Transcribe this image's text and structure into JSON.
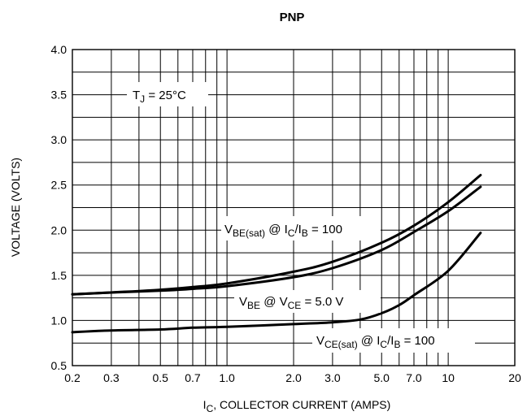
{
  "chart_data": {
    "type": "line",
    "title": "PNP",
    "xlabel": {
      "main": "I",
      "sub": "C",
      "rest": ", COLLECTOR CURRENT (AMPS)"
    },
    "ylabel": "VOLTAGE (VOLTS)",
    "x_scale": "log",
    "xlim": [
      0.2,
      20
    ],
    "ylim": [
      0.5,
      4.0
    ],
    "grid": true,
    "x_ticks": [
      {
        "v": 0.2,
        "label": "0.2"
      },
      {
        "v": 0.3,
        "label": "0.3"
      },
      {
        "v": 0.5,
        "label": "0.5"
      },
      {
        "v": 0.7,
        "label": "0.7"
      },
      {
        "v": 1,
        "label": "1.0"
      },
      {
        "v": 2,
        "label": "2.0"
      },
      {
        "v": 3,
        "label": "3.0"
      },
      {
        "v": 5,
        "label": "5.0"
      },
      {
        "v": 7,
        "label": "7.0"
      },
      {
        "v": 10,
        "label": "10"
      },
      {
        "v": 20,
        "label": "20"
      }
    ],
    "y_ticks": [
      {
        "v": 0.5,
        "label": "0.5"
      },
      {
        "v": 1.0,
        "label": "1.0"
      },
      {
        "v": 1.5,
        "label": "1.5"
      },
      {
        "v": 2.0,
        "label": "2.0"
      },
      {
        "v": 2.5,
        "label": "2.5"
      },
      {
        "v": 3.0,
        "label": "3.0"
      },
      {
        "v": 3.5,
        "label": "3.5"
      },
      {
        "v": 4.0,
        "label": "4.0"
      }
    ],
    "series": [
      {
        "id": "vbe-sat",
        "x": [
          0.2,
          0.3,
          0.5,
          0.7,
          1.0,
          2.0,
          3.0,
          5.0,
          7.0,
          10,
          14
        ],
        "y": [
          1.29,
          1.31,
          1.34,
          1.37,
          1.41,
          1.54,
          1.65,
          1.86,
          2.05,
          2.31,
          2.61
        ]
      },
      {
        "id": "vbe",
        "x": [
          0.2,
          0.3,
          0.5,
          0.7,
          1.0,
          2.0,
          3.0,
          5.0,
          7.0,
          10,
          14
        ],
        "y": [
          1.29,
          1.31,
          1.33,
          1.35,
          1.38,
          1.48,
          1.58,
          1.78,
          1.98,
          2.21,
          2.48
        ]
      },
      {
        "id": "vce-sat",
        "x": [
          0.2,
          0.3,
          0.5,
          0.7,
          1.0,
          2.0,
          3.0,
          4.0,
          5.0,
          6.0,
          7.0,
          10,
          14
        ],
        "y": [
          0.87,
          0.89,
          0.9,
          0.92,
          0.93,
          0.96,
          0.98,
          1.01,
          1.08,
          1.17,
          1.28,
          1.55,
          1.97
        ]
      }
    ],
    "annotations": {
      "tj": {
        "main": "T",
        "sub": "J",
        "rest": " = 25°C"
      },
      "vbe_sat": {
        "a": "V",
        "a_sub": "BE(sat)",
        "b": " @ I",
        "b_sub": "C",
        "c": "/I",
        "c_sub": "B",
        "d": " = 100"
      },
      "vbe": {
        "a": "V",
        "a_sub": "BE",
        "b": " @ V",
        "b_sub": "CE",
        "c": " = 5.0 V"
      },
      "vce_sat": {
        "a": "V",
        "a_sub": "CE(sat)",
        "b": " @ I",
        "b_sub": "C",
        "c": "/I",
        "c_sub": "B",
        "d": " = 100"
      }
    }
  }
}
